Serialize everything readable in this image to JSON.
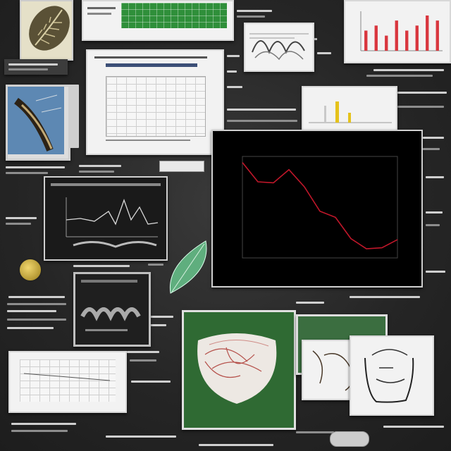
{
  "board": {
    "top_left_doc_label": "",
    "center_doc_title": "",
    "main_chart_title": "",
    "small_tag": ""
  },
  "main_chart": {
    "y_ticks": [],
    "x_ticks": [],
    "line_color": "#c0172a",
    "background": "#000000"
  },
  "chart_data": [
    {
      "type": "line",
      "title": "",
      "xlabel": "",
      "ylabel": "",
      "x": [
        1,
        2,
        3,
        4,
        5,
        6,
        7,
        8,
        9,
        10,
        11
      ],
      "series": [
        {
          "values": [
            9.4,
            7.5,
            7.4,
            8.7,
            7.0,
            4.6,
            4.0,
            1.9,
            0.9,
            1.0,
            1.8
          ]
        }
      ],
      "ylim": [
        0,
        10
      ],
      "grid": false
    },
    {
      "type": "bar",
      "title": "",
      "categories": [
        "1",
        "2",
        "3",
        "4",
        "5",
        "6",
        "7",
        "8"
      ],
      "values": [
        4,
        5,
        3,
        6,
        4,
        5,
        7,
        6
      ]
    }
  ]
}
